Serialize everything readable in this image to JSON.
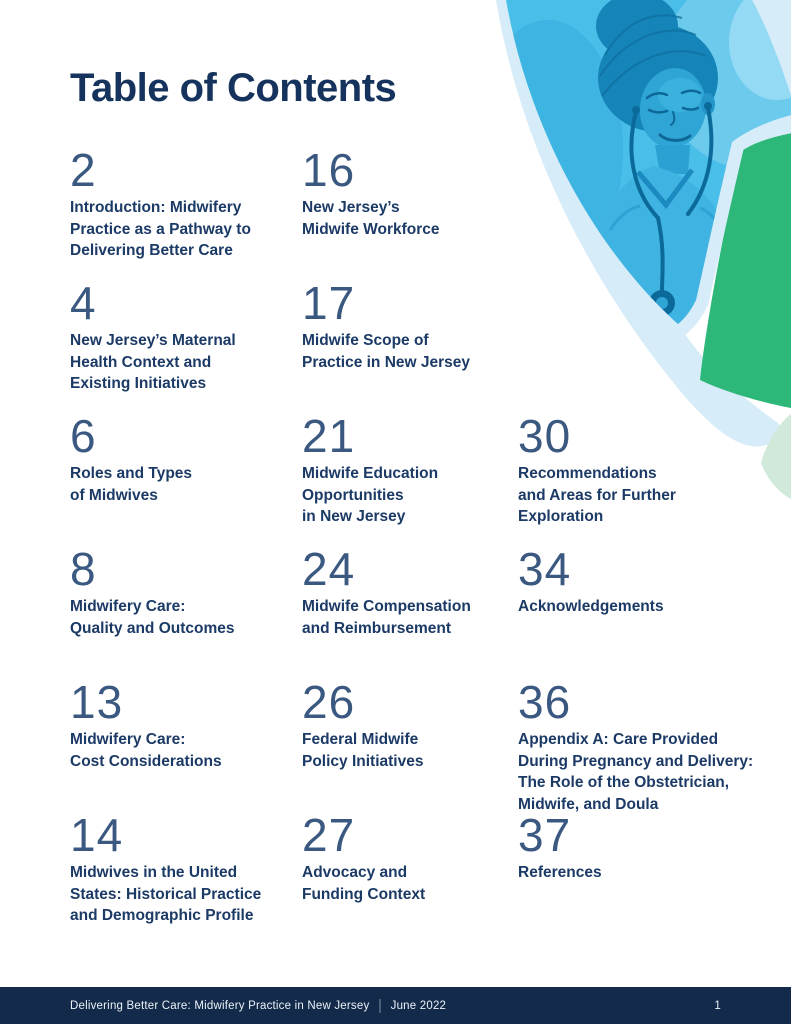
{
  "page": {
    "title": "Table of Contents"
  },
  "toc": {
    "entries": [
      {
        "page": "2",
        "column": 1,
        "row": 1,
        "lines": [
          "Introduction: Midwifery",
          "Practice as a Pathway to",
          "Delivering Better Care"
        ]
      },
      {
        "page": "16",
        "column": 2,
        "row": 1,
        "lines": [
          "New Jersey’s",
          "Midwife Workforce"
        ]
      },
      {
        "page": "4",
        "column": 1,
        "row": 2,
        "lines": [
          "New Jersey’s Maternal",
          "Health Context and",
          "Existing Initiatives"
        ]
      },
      {
        "page": "17",
        "column": 2,
        "row": 2,
        "lines": [
          "Midwife Scope of",
          "Practice in New Jersey"
        ]
      },
      {
        "page": "6",
        "column": 1,
        "row": 3,
        "lines": [
          "Roles and Types",
          "of Midwives"
        ]
      },
      {
        "page": "21",
        "column": 2,
        "row": 3,
        "lines": [
          "Midwife Education",
          "Opportunities",
          "in New Jersey"
        ]
      },
      {
        "page": "30",
        "column": 3,
        "row": 3,
        "lines": [
          "Recommendations",
          "and Areas for Further",
          "Exploration"
        ]
      },
      {
        "page": "8",
        "column": 1,
        "row": 4,
        "lines": [
          "Midwifery Care:",
          "Quality and Outcomes"
        ]
      },
      {
        "page": "24",
        "column": 2,
        "row": 4,
        "lines": [
          "Midwife Compensation",
          "and Reimbursement"
        ]
      },
      {
        "page": "34",
        "column": 3,
        "row": 4,
        "lines": [
          "Acknowledgements"
        ]
      },
      {
        "page": "13",
        "column": 1,
        "row": 5,
        "lines": [
          "Midwifery Care:",
          "Cost Considerations"
        ]
      },
      {
        "page": "26",
        "column": 2,
        "row": 5,
        "lines": [
          "Federal Midwife",
          "Policy Initiatives"
        ]
      },
      {
        "page": "36",
        "column": 3,
        "row": 5,
        "lines": [
          "Appendix A: Care Provided",
          "During Pregnancy and Delivery:",
          "The Role of the Obstetrician,",
          "Midwife, and Doula"
        ]
      },
      {
        "page": "14",
        "column": 1,
        "row": 6,
        "lines": [
          "Midwives in the United",
          "States: Historical Practice",
          "and Demographic Profile"
        ]
      },
      {
        "page": "27",
        "column": 2,
        "row": 6,
        "lines": [
          "Advocacy and",
          "Funding Context"
        ]
      },
      {
        "page": "37",
        "column": 3,
        "row": 6,
        "lines": [
          "References"
        ]
      }
    ]
  },
  "footer": {
    "doc_title": "Delivering Better Care: Midwifery Practice in New Jersey",
    "separator": "|",
    "date": "June 2022",
    "page_number": "1"
  },
  "colors": {
    "navy": "#16335d",
    "entry-navy": "#1c3a66",
    "number-blue": "#3a5880",
    "photo-blue": "#49bee8",
    "green": "#2db879",
    "pale-blue": "#d6ecf8",
    "pale-green": "#d0e9da",
    "footer-bg": "#142a4a",
    "footer-text": "#eaf2f9"
  }
}
